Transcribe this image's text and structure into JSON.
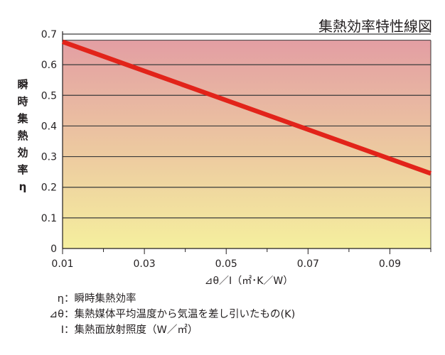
{
  "chart_data": {
    "type": "line",
    "title": "集熱効率特性線図",
    "ylabel_chars": [
      "瞬",
      "時",
      "集",
      "熱",
      "効",
      "率",
      "η"
    ],
    "xlabel": "⊿θ／I（㎡･K／W）",
    "xlim": [
      0.01,
      0.1
    ],
    "ylim": [
      0,
      0.7
    ],
    "x_ticks": [
      "0.01",
      "0.03",
      "0.05",
      "0.07",
      "0.09"
    ],
    "y_ticks": [
      "0",
      "0.1",
      "0.2",
      "0.3",
      "0.4",
      "0.5",
      "0.6",
      "0.7"
    ],
    "series": [
      {
        "x": [
          0.01,
          0.1
        ],
        "y": [
          0.675,
          0.245
        ],
        "color": "#e2231a"
      }
    ],
    "grid": true,
    "background_gradient": [
      "#e39ea3",
      "#f5ef9e"
    ]
  },
  "notes": [
    {
      "symbol": "η",
      "text": "：瞬時集熱効率"
    },
    {
      "symbol": "⊿θ",
      "text": "：集熱媒体平均温度から気温を差し引いたもの(K)"
    },
    {
      "symbol": "I",
      "text": "：集熱面放射照度（W／㎡）"
    }
  ]
}
